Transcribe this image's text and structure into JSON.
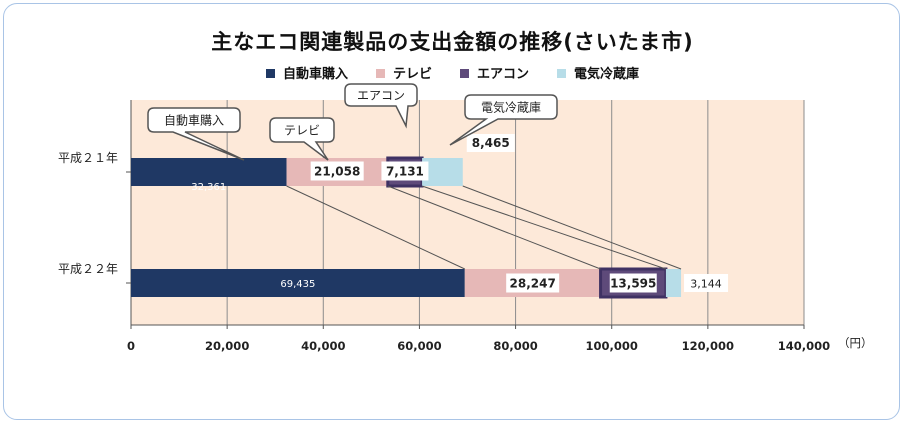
{
  "chart_data": {
    "type": "bar",
    "orientation": "horizontal",
    "stacked": true,
    "title": "主なエコ関連製品の支出金額の推移(さいたま市)",
    "categories": [
      "平成２１年",
      "平成２２年"
    ],
    "series": [
      {
        "name": "自動車購入",
        "color": "#1f3864",
        "values": [
          32361,
          69435
        ],
        "labels": [
          "32,361",
          "69,435"
        ]
      },
      {
        "name": "テレビ",
        "color": "#e6b8b7",
        "values": [
          21058,
          28247
        ],
        "labels": [
          "21,058",
          "28,247"
        ]
      },
      {
        "name": "エアコン",
        "color": "#5e4a7a",
        "values": [
          7131,
          13595
        ],
        "labels": [
          "7,131",
          "13,595"
        ]
      },
      {
        "name": "電気冷蔵庫",
        "color": "#b7dde8",
        "values": [
          8465,
          3144
        ],
        "labels": [
          "8,465",
          "3,144"
        ]
      }
    ],
    "xlim": [
      0,
      140000
    ],
    "xticks": [
      0,
      20000,
      40000,
      60000,
      80000,
      100000,
      120000,
      140000
    ],
    "xtick_labels": [
      "0",
      "20,000",
      "40,000",
      "60,000",
      "80,000",
      "100,000",
      "120,000",
      "140,000"
    ],
    "xunit": "（円）",
    "grid": true,
    "legend_position": "top",
    "plot_background": "#fde9d9",
    "callouts": [
      "自動車購入",
      "テレビ",
      "エアコン",
      "電気冷蔵庫"
    ]
  }
}
